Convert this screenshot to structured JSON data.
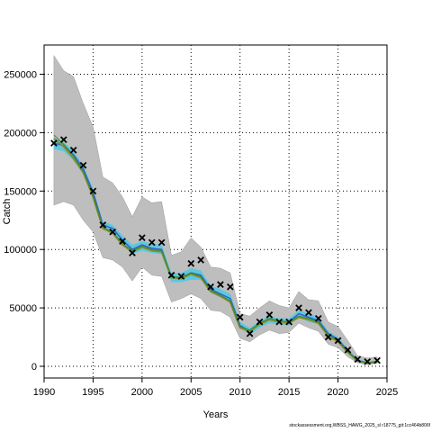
{
  "chart_data": {
    "type": "line",
    "xlabel": "Years",
    "ylabel": "Catch",
    "xlim": [
      1990,
      2025
    ],
    "ylim": [
      -10000,
      275000
    ],
    "x_ticks": [
      1990,
      1995,
      2000,
      2005,
      2010,
      2015,
      2020,
      2025
    ],
    "y_ticks": [
      0,
      50000,
      100000,
      150000,
      200000,
      250000
    ],
    "grid": "dotted",
    "colors": {
      "outer_band": "#bebebe",
      "cyan_band": "#5bc8e0",
      "fit_line": "#3a5fcd",
      "olive_line": "#8b8b2a",
      "green_line": "#2e8b2e",
      "observed_marker": "#000000",
      "grid": "#000000"
    },
    "years": [
      1991,
      1992,
      1993,
      1994,
      1995,
      1996,
      1997,
      1998,
      1999,
      2000,
      2001,
      2002,
      2003,
      2004,
      2005,
      2006,
      2007,
      2008,
      2009,
      2010,
      2011,
      2012,
      2013,
      2014,
      2015,
      2016,
      2017,
      2018,
      2019,
      2020,
      2021,
      2022,
      2023,
      2024
    ],
    "series": [
      {
        "role": "outer_band_upper",
        "values": [
          266000,
          253000,
          248000,
          225000,
          205000,
          162000,
          157000,
          145000,
          128000,
          145000,
          140000,
          141000,
          95000,
          98000,
          110000,
          102000,
          85000,
          84000,
          80000,
          45000,
          43000,
          50000,
          56000,
          52000,
          50000,
          64000,
          57000,
          56000,
          38000,
          34000,
          22000,
          9000,
          7000,
          8000
        ]
      },
      {
        "role": "outer_band_lower",
        "values": [
          138000,
          141000,
          138000,
          125000,
          115000,
          93000,
          91000,
          85000,
          73000,
          85000,
          78000,
          77000,
          55000,
          58000,
          62000,
          58000,
          48000,
          47000,
          42000,
          24000,
          21000,
          27000,
          31000,
          28000,
          29000,
          37000,
          33000,
          30000,
          19000,
          16000,
          8000,
          3000,
          1500,
          2500
        ]
      },
      {
        "role": "cyan_band_upper",
        "values": [
          195000,
          192000,
          184000,
          172000,
          152000,
          124000,
          121000,
          112000,
          104000,
          107000,
          105000,
          104000,
          80000,
          80000,
          84000,
          82000,
          69000,
          66000,
          62000,
          38000,
          33000,
          39000,
          43000,
          41000,
          41000,
          48000,
          45000,
          42000,
          30000,
          25000,
          15000,
          6000,
          4000,
          5000
        ]
      },
      {
        "role": "cyan_band_lower",
        "values": [
          186000,
          184000,
          176000,
          164000,
          144000,
          118000,
          114000,
          104000,
          96000,
          99000,
          97000,
          96000,
          72000,
          72000,
          74000,
          74000,
          63000,
          59000,
          55000,
          33000,
          27000,
          33000,
          37000,
          36000,
          35000,
          42000,
          38000,
          36000,
          25000,
          21000,
          11000,
          4000,
          2200,
          3300
        ]
      },
      {
        "role": "fit_line",
        "values": [
          191000,
          189000,
          181000,
          169000,
          149000,
          121000,
          118000,
          108000,
          100000,
          104000,
          101000,
          100000,
          76000,
          76000,
          80000,
          78000,
          66000,
          62000,
          58000,
          35000,
          30000,
          36000,
          40000,
          38000,
          38000,
          45000,
          42000,
          39000,
          28000,
          23000,
          13000,
          5000,
          3000,
          4000
        ]
      },
      {
        "role": "olive_line",
        "values": [
          195000,
          188000,
          178000,
          166000,
          145000,
          118000,
          114000,
          104000,
          98000,
          102000,
          99000,
          98000,
          76000,
          75000,
          79000,
          76000,
          64000,
          60000,
          55000,
          33000,
          30000,
          36000,
          40000,
          38000,
          37000,
          42000,
          40000,
          37000,
          26000,
          21000,
          12000,
          4500,
          2800,
          3800
        ]
      },
      {
        "role": "green_line",
        "values": [
          198000,
          190000,
          180000,
          167000,
          146000,
          119000,
          115000,
          105000,
          99000,
          103000,
          100000,
          99000,
          77000,
          76000,
          80000,
          77000,
          65000,
          61000,
          56000,
          34000,
          31000,
          37000,
          41000,
          39000,
          38000,
          43000,
          41000,
          38000,
          27000,
          22000,
          12500,
          4800,
          2900,
          3900
        ]
      },
      {
        "role": "observed",
        "values": [
          191000,
          194000,
          185000,
          172000,
          150000,
          121000,
          115000,
          107000,
          97000,
          110000,
          106000,
          106000,
          78000,
          77000,
          88000,
          91000,
          68000,
          70000,
          68000,
          42000,
          28000,
          38000,
          44000,
          38000,
          38000,
          50000,
          46000,
          41000,
          25000,
          22000,
          14000,
          6000,
          4000,
          5000
        ]
      }
    ]
  },
  "footer_text": "stockassessment.org,WBSS_HAWG_2025_sl r18775_git:1cc464b806f"
}
